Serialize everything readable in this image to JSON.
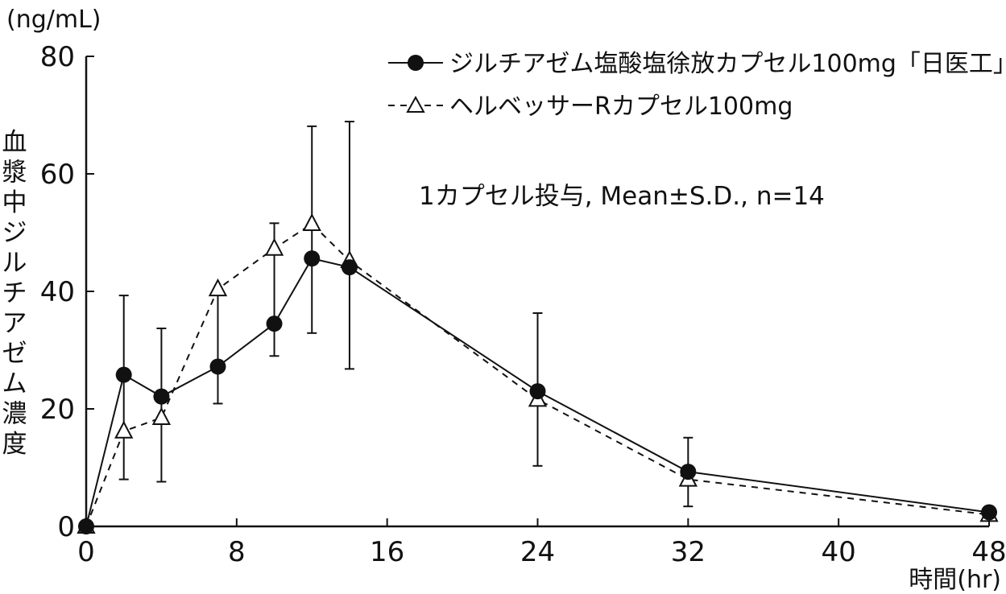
{
  "chart_data": {
    "type": "line",
    "unit_label": "(ng/mL)",
    "ylabel": "血漿中ジルチアゼム濃度",
    "xlabel": "時間(hr)",
    "annotation": "1カプセル投与, Mean±S.D., n=14",
    "xlim": [
      0,
      48
    ],
    "ylim": [
      0,
      80
    ],
    "xticks": [
      0,
      8,
      16,
      24,
      32,
      40,
      48
    ],
    "yticks": [
      0,
      20,
      40,
      60,
      80
    ],
    "grid": false,
    "legend_position": "top-right",
    "series": [
      {
        "name": "ジルチアゼム塩酸塩徐放カプセル100mg「日医工」",
        "marker": "filled-circle",
        "line": "solid",
        "x": [
          0,
          2,
          4,
          7,
          10,
          12,
          14,
          24,
          32,
          48
        ],
        "y": [
          0,
          25.8,
          22.1,
          27.2,
          34.5,
          45.6,
          44.1,
          23.0,
          9.3,
          2.4
        ],
        "error_bars": [
          {
            "x": 2,
            "low": 8.0,
            "high": 39.3
          },
          {
            "x": 4,
            "low": 7.6,
            "high": 33.7
          },
          {
            "x": 7,
            "low": 20.9,
            "high": 40.3
          },
          {
            "x": 10,
            "low": 29.0,
            "high": 51.6
          },
          {
            "x": 12,
            "low": 32.9,
            "high": 68.1
          },
          {
            "x": 14,
            "low": 26.8,
            "high": 68.9
          },
          {
            "x": 24,
            "low": 10.3,
            "high": 36.3
          },
          {
            "x": 32,
            "low": 3.4,
            "high": 15.1
          }
        ]
      },
      {
        "name": "ヘルベッサーRカプセル100mg",
        "marker": "open-triangle",
        "line": "dashed",
        "x": [
          0,
          2,
          4,
          7,
          10,
          12,
          14,
          24,
          32,
          48
        ],
        "y": [
          0,
          16.2,
          18.5,
          40.4,
          47.3,
          51.5,
          45.2,
          21.6,
          8.0,
          2.0
        ]
      }
    ]
  }
}
